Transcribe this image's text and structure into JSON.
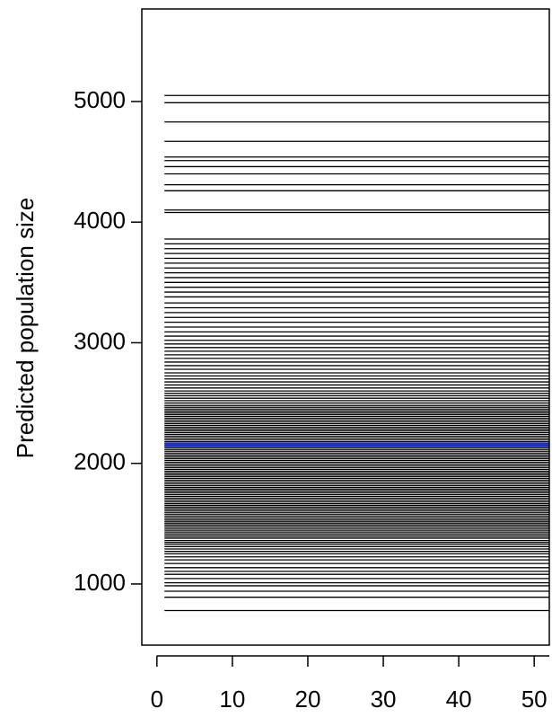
{
  "chart_data": {
    "type": "line",
    "y_label": "Predicted population size",
    "x": [
      1,
      52
    ],
    "xlim": [
      -2,
      52
    ],
    "xticks": [
      0,
      10,
      20,
      30,
      40,
      50
    ],
    "ylim": [
      493,
      5767
    ],
    "yticks": [
      1000,
      2000,
      3000,
      4000,
      5000
    ],
    "color": "#000000",
    "series": [
      {
        "values": [
          780,
          780
        ]
      },
      {
        "values": [
          890,
          890
        ]
      },
      {
        "values": [
          940,
          940
        ]
      },
      {
        "values": [
          985,
          985
        ]
      },
      {
        "values": [
          1010,
          1010
        ]
      },
      {
        "values": [
          1045,
          1045
        ]
      },
      {
        "values": [
          1080,
          1080
        ]
      },
      {
        "values": [
          1105,
          1105
        ]
      },
      {
        "values": [
          1135,
          1135
        ]
      },
      {
        "values": [
          1170,
          1170
        ]
      },
      {
        "values": [
          1200,
          1200
        ]
      },
      {
        "values": [
          1225,
          1225
        ]
      },
      {
        "values": [
          1250,
          1250
        ]
      },
      {
        "values": [
          1270,
          1270
        ]
      },
      {
        "values": [
          1290,
          1290
        ]
      },
      {
        "values": [
          1310,
          1310
        ]
      },
      {
        "values": [
          1330,
          1330
        ]
      },
      {
        "values": [
          1345,
          1345
        ]
      },
      {
        "values": [
          1360,
          1360
        ]
      },
      {
        "values": [
          1380,
          1380
        ]
      },
      {
        "values": [
          1395,
          1395
        ]
      },
      {
        "values": [
          1410,
          1410
        ]
      },
      {
        "values": [
          1425,
          1425
        ]
      },
      {
        "values": [
          1440,
          1440
        ]
      },
      {
        "values": [
          1455,
          1455
        ]
      },
      {
        "values": [
          1470,
          1470
        ]
      },
      {
        "values": [
          1485,
          1485
        ]
      },
      {
        "values": [
          1500,
          1500
        ]
      },
      {
        "values": [
          1515,
          1515
        ]
      },
      {
        "values": [
          1530,
          1530
        ]
      },
      {
        "values": [
          1545,
          1545
        ]
      },
      {
        "values": [
          1560,
          1560
        ]
      },
      {
        "values": [
          1575,
          1575
        ]
      },
      {
        "values": [
          1590,
          1590
        ]
      },
      {
        "values": [
          1605,
          1605
        ]
      },
      {
        "values": [
          1620,
          1620
        ]
      },
      {
        "values": [
          1635,
          1635
        ]
      },
      {
        "values": [
          1650,
          1650
        ]
      },
      {
        "values": [
          1665,
          1665
        ]
      },
      {
        "values": [
          1680,
          1680
        ]
      },
      {
        "values": [
          1695,
          1695
        ]
      },
      {
        "values": [
          1710,
          1710
        ]
      },
      {
        "values": [
          1725,
          1725
        ]
      },
      {
        "values": [
          1740,
          1740
        ]
      },
      {
        "values": [
          1755,
          1755
        ]
      },
      {
        "values": [
          1770,
          1770
        ]
      },
      {
        "values": [
          1785,
          1785
        ]
      },
      {
        "values": [
          1800,
          1800
        ]
      },
      {
        "values": [
          1815,
          1815
        ]
      },
      {
        "values": [
          1830,
          1830
        ]
      },
      {
        "values": [
          1845,
          1845
        ]
      },
      {
        "values": [
          1860,
          1860
        ]
      },
      {
        "values": [
          1875,
          1875
        ]
      },
      {
        "values": [
          1890,
          1890
        ]
      },
      {
        "values": [
          1905,
          1905
        ]
      },
      {
        "values": [
          1920,
          1920
        ]
      },
      {
        "values": [
          1935,
          1935
        ]
      },
      {
        "values": [
          1950,
          1950
        ]
      },
      {
        "values": [
          1965,
          1965
        ]
      },
      {
        "values": [
          1980,
          1980
        ]
      },
      {
        "values": [
          1995,
          1995
        ]
      },
      {
        "values": [
          2010,
          2010
        ]
      },
      {
        "values": [
          2025,
          2025
        ]
      },
      {
        "values": [
          2040,
          2040
        ]
      },
      {
        "values": [
          2055,
          2055
        ]
      },
      {
        "values": [
          2070,
          2070
        ]
      },
      {
        "values": [
          2085,
          2085
        ]
      },
      {
        "values": [
          2100,
          2100
        ]
      },
      {
        "values": [
          2115,
          2115
        ]
      },
      {
        "values": [
          2130,
          2130
        ]
      },
      {
        "values": [
          2145,
          2145
        ]
      },
      {
        "values": [
          2165,
          2165
        ]
      },
      {
        "values": [
          2180,
          2180
        ]
      },
      {
        "values": [
          2195,
          2195
        ]
      },
      {
        "values": [
          2210,
          2210
        ]
      },
      {
        "values": [
          2225,
          2225
        ]
      },
      {
        "values": [
          2240,
          2240
        ]
      },
      {
        "values": [
          2255,
          2255
        ]
      },
      {
        "values": [
          2270,
          2270
        ]
      },
      {
        "values": [
          2285,
          2285
        ]
      },
      {
        "values": [
          2300,
          2300
        ]
      },
      {
        "values": [
          2315,
          2315
        ]
      },
      {
        "values": [
          2330,
          2330
        ]
      },
      {
        "values": [
          2345,
          2345
        ]
      },
      {
        "values": [
          2360,
          2360
        ]
      },
      {
        "values": [
          2375,
          2375
        ]
      },
      {
        "values": [
          2390,
          2390
        ]
      },
      {
        "values": [
          2405,
          2405
        ]
      },
      {
        "values": [
          2420,
          2420
        ]
      },
      {
        "values": [
          2435,
          2435
        ]
      },
      {
        "values": [
          2450,
          2450
        ]
      },
      {
        "values": [
          2465,
          2465
        ]
      },
      {
        "values": [
          2480,
          2480
        ]
      },
      {
        "values": [
          2500,
          2500
        ]
      },
      {
        "values": [
          2520,
          2520
        ]
      },
      {
        "values": [
          2540,
          2540
        ]
      },
      {
        "values": [
          2560,
          2560
        ]
      },
      {
        "values": [
          2580,
          2580
        ]
      },
      {
        "values": [
          2600,
          2600
        ]
      },
      {
        "values": [
          2625,
          2625
        ]
      },
      {
        "values": [
          2650,
          2650
        ]
      },
      {
        "values": [
          2675,
          2675
        ]
      },
      {
        "values": [
          2700,
          2700
        ]
      },
      {
        "values": [
          2725,
          2725
        ]
      },
      {
        "values": [
          2750,
          2750
        ]
      },
      {
        "values": [
          2780,
          2780
        ]
      },
      {
        "values": [
          2810,
          2810
        ]
      },
      {
        "values": [
          2840,
          2840
        ]
      },
      {
        "values": [
          2870,
          2870
        ]
      },
      {
        "values": [
          2900,
          2900
        ]
      },
      {
        "values": [
          2930,
          2930
        ]
      },
      {
        "values": [
          2960,
          2960
        ]
      },
      {
        "values": [
          2990,
          2990
        ]
      },
      {
        "values": [
          3020,
          3020
        ]
      },
      {
        "values": [
          3055,
          3055
        ]
      },
      {
        "values": [
          3090,
          3090
        ]
      },
      {
        "values": [
          3130,
          3130
        ]
      },
      {
        "values": [
          3170,
          3170
        ]
      },
      {
        "values": [
          3210,
          3210
        ]
      },
      {
        "values": [
          3250,
          3250
        ]
      },
      {
        "values": [
          3290,
          3290
        ]
      },
      {
        "values": [
          3330,
          3330
        ]
      },
      {
        "values": [
          3380,
          3380
        ]
      },
      {
        "values": [
          3420,
          3420
        ]
      },
      {
        "values": [
          3460,
          3460
        ]
      },
      {
        "values": [
          3500,
          3500
        ]
      },
      {
        "values": [
          3540,
          3540
        ]
      },
      {
        "values": [
          3580,
          3580
        ]
      },
      {
        "values": [
          3620,
          3620
        ]
      },
      {
        "values": [
          3660,
          3660
        ]
      },
      {
        "values": [
          3700,
          3700
        ]
      },
      {
        "values": [
          3740,
          3740
        ]
      },
      {
        "values": [
          3780,
          3780
        ]
      },
      {
        "values": [
          3820,
          3820
        ]
      },
      {
        "values": [
          3860,
          3860
        ]
      },
      {
        "values": [
          4080,
          4080
        ]
      },
      {
        "values": [
          4100,
          4100
        ]
      },
      {
        "values": [
          4260,
          4260
        ]
      },
      {
        "values": [
          4310,
          4310
        ]
      },
      {
        "values": [
          4400,
          4400
        ]
      },
      {
        "values": [
          4460,
          4460
        ]
      },
      {
        "values": [
          4510,
          4510
        ]
      },
      {
        "values": [
          4540,
          4540
        ]
      },
      {
        "values": [
          4670,
          4670
        ]
      },
      {
        "values": [
          4830,
          4830
        ]
      },
      {
        "values": [
          4990,
          4990
        ]
      },
      {
        "values": [
          5050,
          5050
        ]
      },
      {
        "color": "#2233bb",
        "values": [
          2155,
          2155
        ]
      }
    ]
  }
}
